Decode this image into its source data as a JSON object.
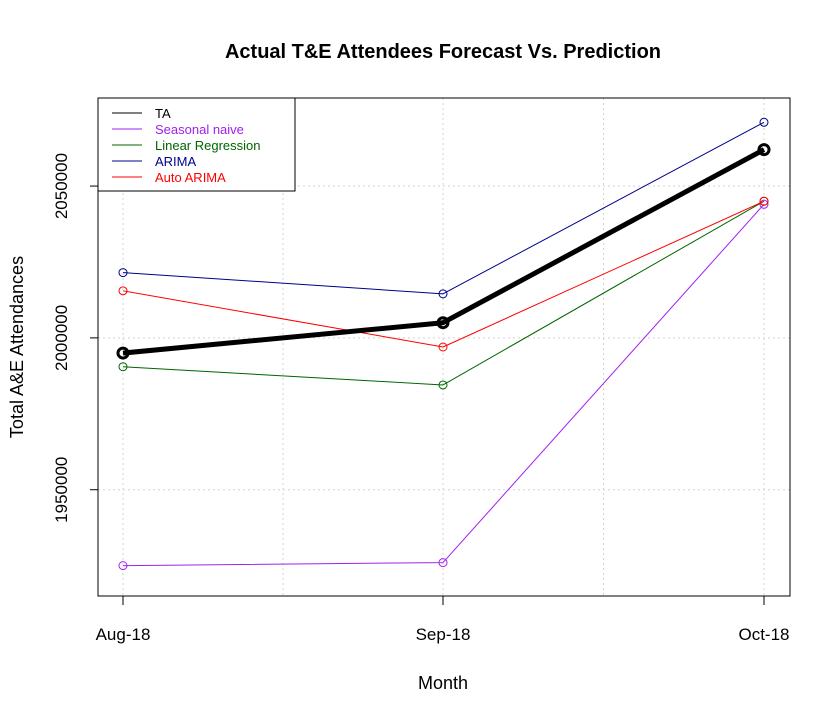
{
  "chart_data": {
    "type": "line",
    "title": "Actual T&E Attendees Forecast Vs. Prediction",
    "xlabel": "Month",
    "ylabel": "Total A&E Attendances",
    "categories": [
      "Aug-18",
      "Sep-18",
      "Oct-18"
    ],
    "ylim": [
      1915000,
      2079000
    ],
    "yticks": [
      "1950000",
      "2000000",
      "2050000"
    ],
    "grid": true,
    "legend_position": "top-left",
    "series": [
      {
        "name": "TA",
        "color": "#000000",
        "values": [
          1995000,
          2005000,
          2062000
        ],
        "emphasis": true
      },
      {
        "name": "Seasonal naive",
        "color": "#a020f0",
        "values": [
          1925000,
          1926000,
          2044000
        ]
      },
      {
        "name": "Linear Regression",
        "color": "#006400",
        "values": [
          1990500,
          1984500,
          2045000
        ]
      },
      {
        "name": "ARIMA",
        "color": "#00008b",
        "values": [
          2021500,
          2014500,
          2071000
        ]
      },
      {
        "name": "Auto ARIMA",
        "color": "#ff0000",
        "values": [
          2015500,
          1997000,
          2045000
        ]
      }
    ]
  }
}
